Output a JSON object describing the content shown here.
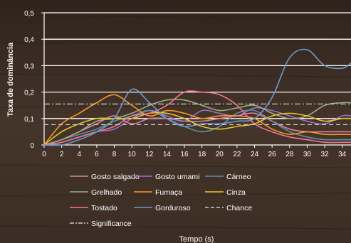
{
  "chart_data": {
    "type": "line",
    "title": "",
    "xlabel": "Tempo (s)",
    "ylabel": "Taxa de dominância",
    "xlim": [
      0,
      35
    ],
    "ylim": [
      0,
      0.5
    ],
    "xticks": [
      0,
      2,
      4,
      6,
      8,
      10,
      12,
      14,
      16,
      18,
      20,
      22,
      24,
      26,
      28,
      30,
      32,
      34
    ],
    "yticks": [
      0,
      0.1,
      0.2,
      0.3,
      0.4,
      0.5
    ],
    "ytick_labels": [
      "0",
      "0,1",
      "0,2",
      "0,3",
      "0,4",
      "0,5"
    ],
    "grid": "horizontal",
    "legend_position": "bottom",
    "x": [
      0,
      2,
      4,
      6,
      8,
      10,
      12,
      14,
      16,
      18,
      20,
      22,
      24,
      26,
      28,
      30,
      32,
      34,
      35
    ],
    "series": [
      {
        "name": "Gosto salgado",
        "color": "#e07ea0",
        "style": "solid",
        "values": [
          0.0,
          0.02,
          0.05,
          0.08,
          0.11,
          0.08,
          0.1,
          0.1,
          0.09,
          0.09,
          0.1,
          0.11,
          0.12,
          0.09,
          0.06,
          0.05,
          0.05,
          0.05,
          0.05
        ]
      },
      {
        "name": "Gosto umami",
        "color": "#9a72c8",
        "style": "solid",
        "values": [
          0.0,
          0.01,
          0.03,
          0.05,
          0.06,
          0.1,
          0.13,
          0.11,
          0.09,
          0.13,
          0.12,
          0.11,
          0.14,
          0.13,
          0.11,
          0.09,
          0.08,
          0.11,
          0.11
        ]
      },
      {
        "name": "Cárneo",
        "color": "#5b8fa8",
        "style": "solid",
        "values": [
          0.0,
          0.02,
          0.04,
          0.06,
          0.09,
          0.11,
          0.13,
          0.1,
          0.07,
          0.05,
          0.07,
          0.12,
          0.13,
          0.09,
          0.05,
          0.03,
          0.02,
          0.02,
          0.02
        ]
      },
      {
        "name": "Grelhado",
        "color": "#9aae80",
        "style": "solid",
        "values": [
          0.0,
          0.02,
          0.05,
          0.09,
          0.1,
          0.12,
          0.15,
          0.17,
          0.17,
          0.15,
          0.13,
          0.14,
          0.15,
          0.12,
          0.1,
          0.11,
          0.15,
          0.16,
          0.16
        ]
      },
      {
        "name": "Fumaça",
        "color": "#f59a28",
        "style": "solid",
        "values": [
          0.0,
          0.08,
          0.12,
          0.16,
          0.19,
          0.15,
          0.11,
          0.13,
          0.12,
          0.1,
          0.11,
          0.11,
          0.1,
          0.06,
          0.04,
          0.05,
          0.04,
          0.04,
          0.04
        ]
      },
      {
        "name": "Cinza",
        "color": "#e8c230",
        "style": "solid",
        "values": [
          0.0,
          0.05,
          0.08,
          0.1,
          0.1,
          0.1,
          0.12,
          0.12,
          0.1,
          0.07,
          0.06,
          0.07,
          0.08,
          0.11,
          0.12,
          0.11,
          0.09,
          0.1,
          0.1
        ]
      },
      {
        "name": "Tostado",
        "color": "#f07890",
        "style": "solid",
        "values": [
          0.0,
          0.01,
          0.03,
          0.05,
          0.07,
          0.11,
          0.12,
          0.15,
          0.2,
          0.2,
          0.19,
          0.15,
          0.08,
          0.05,
          0.03,
          0.02,
          0.01,
          0.01,
          0.01
        ]
      },
      {
        "name": "Gorduroso",
        "color": "#6a9ccf",
        "style": "solid",
        "values": [
          0.0,
          0.0,
          0.02,
          0.05,
          0.1,
          0.21,
          0.16,
          0.1,
          0.07,
          0.08,
          0.08,
          0.09,
          0.1,
          0.18,
          0.33,
          0.36,
          0.3,
          0.29,
          0.31
        ]
      },
      {
        "name": "Chance",
        "color": "#cccccc",
        "style": "dashed",
        "constant": 0.077
      },
      {
        "name": "Significance",
        "color": "#cccccc",
        "style": "dashdot",
        "constant": 0.155
      }
    ]
  }
}
